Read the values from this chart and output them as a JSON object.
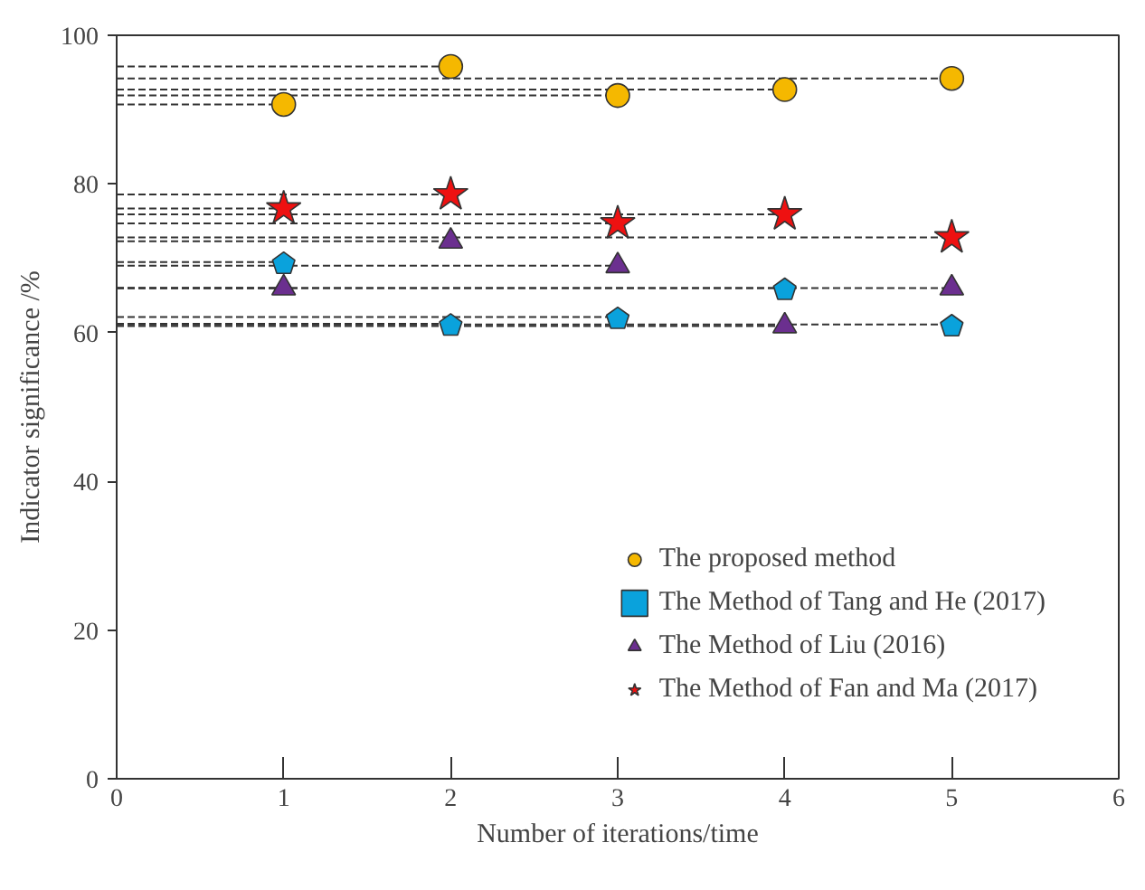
{
  "chart_data": {
    "type": "scatter",
    "xlabel": "Number of iterations/time",
    "ylabel": "Indicator significance /%",
    "x": [
      1,
      2,
      3,
      4,
      5
    ],
    "series": [
      {
        "type": "line",
        "color": "#333333",
        "line_style": "dashed",
        "x": [
          0,
          1
        ],
        "values": [
          90.7,
          90.7
        ]
      },
      {
        "type": "line",
        "color": "#333333",
        "line_style": "dashed",
        "x": [
          0,
          2
        ],
        "values": [
          95.8,
          95.8
        ]
      },
      {
        "type": "line",
        "color": "#333333",
        "line_style": "dashed",
        "x": [
          0,
          3
        ],
        "values": [
          91.9,
          91.9
        ]
      },
      {
        "type": "line",
        "color": "#333333",
        "line_style": "dashed",
        "x": [
          0,
          4
        ],
        "values": [
          92.7,
          92.7
        ]
      },
      {
        "type": "line",
        "color": "#333333",
        "line_style": "dashed",
        "x": [
          0,
          5
        ],
        "values": [
          94.2,
          94.2
        ]
      },
      {
        "type": "line",
        "color": "#333333",
        "line_style": "dashed",
        "x": [
          0,
          1
        ],
        "values": [
          69.5,
          69.5
        ]
      },
      {
        "type": "line",
        "color": "#333333",
        "line_style": "dashed",
        "x": [
          0,
          2
        ],
        "values": [
          61.2,
          61.2
        ]
      },
      {
        "type": "line",
        "color": "#333333",
        "line_style": "dashed",
        "x": [
          0,
          3
        ],
        "values": [
          62.1,
          62.1
        ]
      },
      {
        "type": "line",
        "color": "#333333",
        "line_style": "dashed",
        "x": [
          0,
          4
        ],
        "values": [
          66.0,
          66.0
        ]
      },
      {
        "type": "line",
        "color": "#333333",
        "line_style": "dashed",
        "x": [
          0,
          5
        ],
        "values": [
          61.1,
          61.1
        ]
      },
      {
        "type": "line",
        "color": "#333333",
        "line_style": "dashed",
        "x": [
          0,
          1
        ],
        "values": [
          66.0,
          66.0
        ]
      },
      {
        "type": "line",
        "color": "#333333",
        "line_style": "dashed",
        "x": [
          0,
          2
        ],
        "values": [
          72.3,
          72.3
        ]
      },
      {
        "type": "line",
        "color": "#333333",
        "line_style": "dashed",
        "x": [
          0,
          3
        ],
        "values": [
          69.0,
          69.0
        ]
      },
      {
        "type": "line",
        "color": "#333333",
        "line_style": "dashed",
        "x": [
          0,
          4
        ],
        "values": [
          60.9,
          60.9
        ]
      },
      {
        "type": "line",
        "color": "#333333",
        "line_style": "dashed",
        "x": [
          0,
          5
        ],
        "values": [
          66.0,
          66.0
        ]
      },
      {
        "type": "line",
        "color": "#333333",
        "line_style": "dashed",
        "x": [
          0,
          1
        ],
        "values": [
          76.7,
          76.7
        ]
      },
      {
        "type": "line",
        "color": "#333333",
        "line_style": "dashed",
        "x": [
          0,
          2
        ],
        "values": [
          78.6,
          78.6
        ]
      },
      {
        "type": "line",
        "color": "#333333",
        "line_style": "dashed",
        "x": [
          0,
          3
        ],
        "values": [
          74.7,
          74.7
        ]
      },
      {
        "type": "line",
        "color": "#333333",
        "line_style": "dashed",
        "x": [
          0,
          4
        ],
        "values": [
          75.9,
          75.9
        ]
      },
      {
        "type": "line",
        "color": "#333333",
        "line_style": "dashed",
        "x": [
          0,
          5
        ],
        "values": [
          72.8,
          72.8
        ]
      },
      {
        "name": "The proposed method",
        "color": "#f5b800",
        "marker": "circle",
        "values": [
          90.7,
          95.8,
          91.9,
          92.7,
          94.2
        ]
      },
      {
        "name": "The Method of Tang and He (2017)",
        "color": "#0aa2dc",
        "values": [
          69.5,
          61.2,
          62.1,
          66.0,
          61.1
        ]
      },
      {
        "name": "The Method of Liu (2016)",
        "color": "#6b2f8f",
        "marker": "triangle",
        "values": [
          66.0,
          72.3,
          69.0,
          60.9,
          66.0
        ]
      },
      {
        "name": "The Method of Fan and Ma (2017)",
        "color": "#ee1111",
        "marker": "star",
        "values": [
          76.7,
          78.6,
          74.7,
          75.9,
          72.8
        ]
      }
    ],
    "xlim": [
      0,
      6
    ],
    "xticks": [
      0,
      1,
      2,
      3,
      4,
      5,
      6
    ],
    "ylim": [
      0,
      100
    ],
    "yticks": [
      0,
      20,
      40,
      60,
      80,
      100
    ],
    "grid": false,
    "legend": "bottom right"
  }
}
